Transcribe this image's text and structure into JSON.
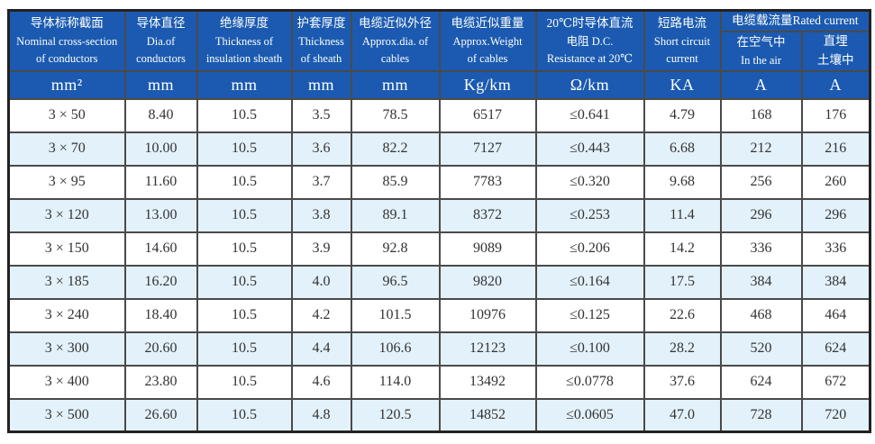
{
  "table": {
    "colors": {
      "header_bg": "#1b5ab0",
      "header_text": "#ffffff",
      "row_alt_bg": "#e3f1fa",
      "row_bg": "#ffffff",
      "grid_line": "#4a4a4a",
      "outer_border": "#222222",
      "body_text": "#333333"
    },
    "columns": [
      {
        "zh": "导体标称截面",
        "en1": "Nominal cross-section",
        "en2": "of conductors",
        "unit": "mm²"
      },
      {
        "zh": "导体直径",
        "en1": "Dia.of",
        "en2": "conductors",
        "unit": "mm"
      },
      {
        "zh": "绝缘厚度",
        "en1": "Thickness of",
        "en2": "insulation sheath",
        "unit": "mm"
      },
      {
        "zh": "护套厚度",
        "en1": "Thickness",
        "en2": "of sheath",
        "unit": "mm"
      },
      {
        "zh": "电缆近似外径",
        "en1": "Approx.dia. of",
        "en2": "cables",
        "unit": "mm"
      },
      {
        "zh": "电缆近似重量",
        "en1": "Approx.Weight",
        "en2": "of cables",
        "unit": "Kg/km"
      },
      {
        "zh": "20℃时导体直流",
        "en1": "电阻 D.C.",
        "en2": "Resistance at 20℃",
        "unit": "Ω/km"
      },
      {
        "zh": "短路电流",
        "en1": "Short circuit",
        "en2": "current",
        "unit": "KA"
      }
    ],
    "rated_group": {
      "title": "电缆载流量Rated current",
      "sub": [
        {
          "line1": "在空气中",
          "line2": "In the air",
          "unit": "A"
        },
        {
          "line1": "直埋",
          "line2": "土壤中",
          "unit": "A"
        }
      ]
    },
    "rows": [
      [
        "3 × 50",
        "8.40",
        "10.5",
        "3.5",
        "78.5",
        "6517",
        "≤0.641",
        "4.79",
        "168",
        "176"
      ],
      [
        "3 × 70",
        "10.00",
        "10.5",
        "3.6",
        "82.2",
        "7127",
        "≤0.443",
        "6.68",
        "212",
        "216"
      ],
      [
        "3 × 95",
        "11.60",
        "10.5",
        "3.7",
        "85.9",
        "7783",
        "≤0.320",
        "9.68",
        "256",
        "260"
      ],
      [
        "3 × 120",
        "13.00",
        "10.5",
        "3.8",
        "89.1",
        "8372",
        "≤0.253",
        "11.4",
        "296",
        "296"
      ],
      [
        "3 × 150",
        "14.60",
        "10.5",
        "3.9",
        "92.8",
        "9089",
        "≤0.206",
        "14.2",
        "336",
        "336"
      ],
      [
        "3 × 185",
        "16.20",
        "10.5",
        "4.0",
        "96.5",
        "9820",
        "≤0.164",
        "17.5",
        "384",
        "384"
      ],
      [
        "3 × 240",
        "18.40",
        "10.5",
        "4.2",
        "101.5",
        "10976",
        "≤0.125",
        "22.6",
        "468",
        "464"
      ],
      [
        "3 × 300",
        "20.60",
        "10.5",
        "4.4",
        "106.6",
        "12123",
        "≤0.100",
        "28.2",
        "520",
        "624"
      ],
      [
        "3 × 400",
        "23.80",
        "10.5",
        "4.6",
        "114.0",
        "13492",
        "≤0.0778",
        "37.6",
        "624",
        "672"
      ],
      [
        "3 × 500",
        "26.60",
        "10.5",
        "4.8",
        "120.5",
        "14852",
        "≤0.0605",
        "47.0",
        "728",
        "720"
      ]
    ]
  }
}
